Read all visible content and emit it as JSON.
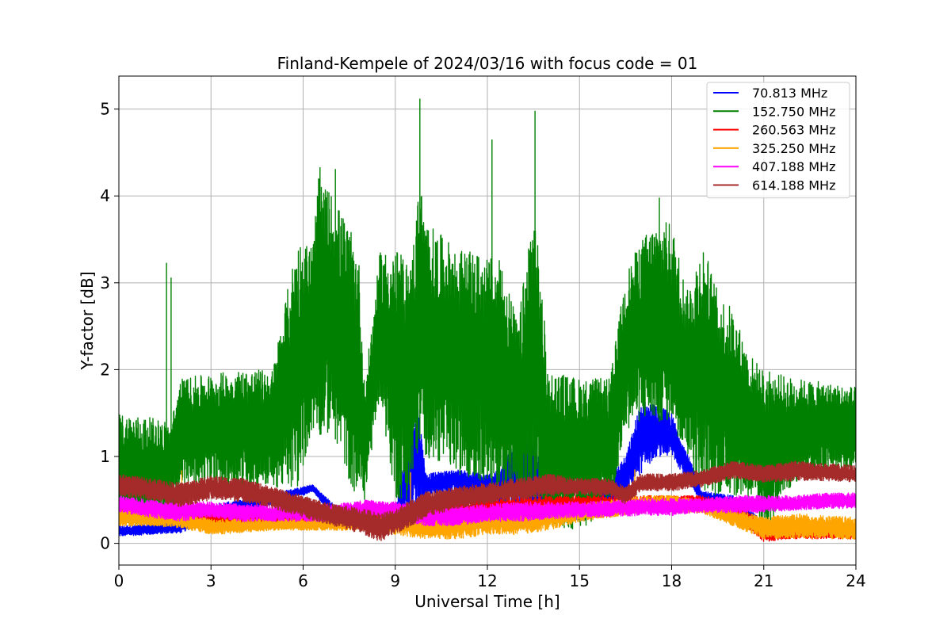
{
  "chart_data": {
    "type": "line",
    "title": "Finland-Kempele of 2024/03/16 with focus code = 01",
    "xlabel": "Universal Time [h]",
    "ylabel": "Y-factor [dB]",
    "xlim": [
      0,
      24
    ],
    "ylim": [
      -0.25,
      5.38
    ],
    "xticks": [
      0,
      3,
      6,
      9,
      12,
      15,
      18,
      21,
      24
    ],
    "xtick_labels": [
      "0",
      "3",
      "6",
      "9",
      "12",
      "15",
      "18",
      "21",
      "24"
    ],
    "yticks": [
      0,
      1,
      2,
      3,
      4,
      5
    ],
    "ytick_labels": [
      "0",
      "1",
      "2",
      "3",
      "4",
      "5"
    ],
    "grid": true,
    "legend_position": "top-right",
    "series": [
      {
        "name": " 70.813 MHz",
        "color": "#0000ff",
        "x": [
          0,
          1,
          2,
          3,
          4,
          5,
          6,
          6.3,
          7,
          8,
          9,
          9.7,
          10,
          11,
          12,
          12.5,
          13,
          13.5,
          14,
          15,
          16,
          16.5,
          17,
          17.5,
          18,
          19,
          20,
          21,
          22,
          23,
          24
        ],
        "low": [
          0.08,
          0.1,
          0.12,
          0.25,
          0.35,
          0.45,
          0.55,
          0.6,
          0.3,
          0.28,
          0.25,
          0.35,
          0.55,
          0.6,
          0.45,
          0.4,
          0.35,
          0.3,
          0.25,
          0.25,
          0.4,
          0.55,
          0.8,
          1.0,
          1.0,
          0.45,
          0.4,
          0.1,
          0.1,
          0.1,
          0.1
        ],
        "high": [
          0.2,
          0.22,
          0.25,
          0.45,
          0.5,
          0.58,
          0.65,
          0.68,
          0.45,
          0.4,
          0.4,
          1.75,
          0.8,
          0.85,
          0.8,
          0.9,
          1.3,
          1.2,
          0.6,
          0.5,
          0.8,
          1.0,
          1.65,
          1.6,
          1.5,
          0.6,
          0.55,
          0.25,
          0.2,
          0.2,
          0.2
        ]
      },
      {
        "name": "152.750 MHz",
        "color": "#008000",
        "x": [
          0,
          1,
          1.7,
          2,
          3,
          4,
          5,
          5.8,
          6.3,
          6.5,
          7,
          7.8,
          8,
          8.5,
          9,
          9.5,
          9.8,
          10,
          11,
          12,
          12.5,
          13,
          13.5,
          14,
          15,
          16,
          16.5,
          17,
          17.5,
          18,
          18.5,
          19,
          19.5,
          20,
          20.5,
          21,
          22,
          23,
          24
        ],
        "low": [
          0.2,
          0.2,
          0.25,
          0.7,
          0.65,
          0.65,
          0.65,
          0.6,
          1.3,
          1.25,
          1.25,
          0.4,
          0.5,
          1.7,
          0.5,
          0.5,
          1.2,
          1.0,
          0.8,
          0.7,
          0.6,
          0.5,
          0.2,
          0.2,
          0.15,
          0.4,
          1.3,
          1.4,
          1.4,
          1.4,
          1.0,
          0.6,
          0.55,
          0.55,
          0.5,
          0.1,
          0.7,
          0.8,
          0.8
        ],
        "high": [
          1.5,
          1.45,
          1.4,
          1.9,
          1.95,
          2.0,
          2.0,
          3.5,
          3.45,
          4.2,
          4.0,
          3.4,
          1.8,
          3.35,
          3.4,
          3.2,
          4.2,
          3.7,
          3.4,
          3.3,
          3.25,
          2.5,
          4.0,
          2.0,
          1.9,
          1.9,
          3.1,
          3.5,
          3.7,
          3.7,
          2.9,
          3.5,
          2.9,
          2.7,
          2.2,
          2.0,
          1.9,
          1.85,
          1.8
        ],
        "spikes": [
          {
            "x": 1.55,
            "y": 3.23
          },
          {
            "x": 1.7,
            "y": 3.06
          },
          {
            "x": 6.55,
            "y": 4.33
          },
          {
            "x": 7.05,
            "y": 4.31
          },
          {
            "x": 9.8,
            "y": 5.12
          },
          {
            "x": 12.15,
            "y": 4.65
          },
          {
            "x": 13.55,
            "y": 4.98
          },
          {
            "x": 17.6,
            "y": 3.98
          }
        ]
      },
      {
        "name": "260.563 MHz",
        "color": "#ff0000",
        "x": [
          0,
          1,
          2,
          3,
          4,
          5,
          6,
          7,
          8,
          9,
          10,
          11,
          12,
          13,
          14,
          15,
          16,
          17,
          18,
          19,
          20,
          21,
          22,
          23,
          24
        ],
        "low": [
          0.3,
          0.28,
          0.25,
          0.2,
          0.2,
          0.2,
          0.2,
          0.2,
          0.22,
          0.18,
          0.18,
          0.2,
          0.22,
          0.22,
          0.25,
          0.28,
          0.32,
          0.35,
          0.38,
          0.38,
          0.3,
          0.02,
          0.05,
          0.05,
          0.05
        ],
        "high": [
          0.45,
          0.45,
          0.45,
          0.35,
          0.35,
          0.35,
          0.35,
          0.35,
          0.4,
          0.4,
          0.45,
          0.5,
          0.55,
          0.55,
          0.55,
          0.55,
          0.55,
          0.55,
          0.55,
          0.55,
          0.5,
          0.25,
          0.22,
          0.22,
          0.22
        ]
      },
      {
        "name": "325.250 MHz",
        "color": "#ffa500",
        "x": [
          0,
          1,
          2,
          3,
          4,
          5,
          6,
          7,
          8,
          9,
          10,
          11,
          12,
          13,
          14,
          15,
          16,
          17,
          18,
          19,
          20,
          21,
          22,
          23,
          24
        ],
        "low": [
          0.2,
          0.2,
          0.18,
          0.1,
          0.12,
          0.15,
          0.15,
          0.15,
          0.15,
          0.1,
          0.05,
          0.05,
          0.1,
          0.1,
          0.15,
          0.25,
          0.3,
          0.35,
          0.35,
          0.35,
          0.2,
          0.05,
          0.05,
          0.05,
          0.05
        ],
        "high": [
          0.4,
          0.38,
          0.35,
          0.28,
          0.28,
          0.28,
          0.28,
          0.28,
          0.3,
          0.3,
          0.3,
          0.35,
          0.4,
          0.4,
          0.45,
          0.45,
          0.5,
          0.55,
          0.55,
          0.5,
          0.4,
          0.3,
          0.35,
          0.32,
          0.3
        ],
        "spikes": [
          {
            "x": 2.05,
            "y": 0.84
          },
          {
            "x": 9.5,
            "y": 0.82
          },
          {
            "x": 16.8,
            "y": 0.85
          }
        ]
      },
      {
        "name": "407.188 MHz",
        "color": "#ff00ff",
        "x": [
          0,
          1,
          2,
          3,
          4,
          5,
          6,
          7,
          8,
          9,
          10,
          11,
          12,
          13,
          14,
          15,
          16,
          17,
          18,
          19,
          20,
          21,
          22,
          23,
          24
        ],
        "low": [
          0.35,
          0.3,
          0.25,
          0.3,
          0.25,
          0.25,
          0.25,
          0.25,
          0.3,
          0.28,
          0.2,
          0.2,
          0.25,
          0.25,
          0.28,
          0.3,
          0.3,
          0.32,
          0.32,
          0.35,
          0.35,
          0.35,
          0.38,
          0.4,
          0.4
        ],
        "high": [
          0.55,
          0.5,
          0.48,
          0.48,
          0.45,
          0.45,
          0.45,
          0.45,
          0.5,
          0.48,
          0.42,
          0.42,
          0.45,
          0.48,
          0.48,
          0.48,
          0.5,
          0.52,
          0.52,
          0.52,
          0.55,
          0.55,
          0.55,
          0.58,
          0.58
        ]
      },
      {
        "name": "614.188 MHz",
        "color": "#a52a2a",
        "x": [
          0,
          1,
          2,
          3,
          4,
          5,
          6,
          7,
          8,
          8.5,
          9,
          10,
          11,
          12,
          13,
          14,
          15,
          16,
          16.5,
          17,
          18,
          19,
          20,
          21,
          22,
          23,
          24
        ],
        "low": [
          0.55,
          0.5,
          0.42,
          0.5,
          0.48,
          0.4,
          0.3,
          0.2,
          0.1,
          0.02,
          0.1,
          0.3,
          0.4,
          0.45,
          0.5,
          0.55,
          0.55,
          0.55,
          0.45,
          0.6,
          0.6,
          0.65,
          0.75,
          0.7,
          0.72,
          0.72,
          0.7
        ],
        "high": [
          0.8,
          0.75,
          0.7,
          0.78,
          0.75,
          0.65,
          0.55,
          0.45,
          0.4,
          0.35,
          0.4,
          0.6,
          0.65,
          0.7,
          0.75,
          0.8,
          0.75,
          0.75,
          0.65,
          0.8,
          0.8,
          0.85,
          0.95,
          0.9,
          0.95,
          0.92,
          0.9
        ]
      }
    ]
  }
}
